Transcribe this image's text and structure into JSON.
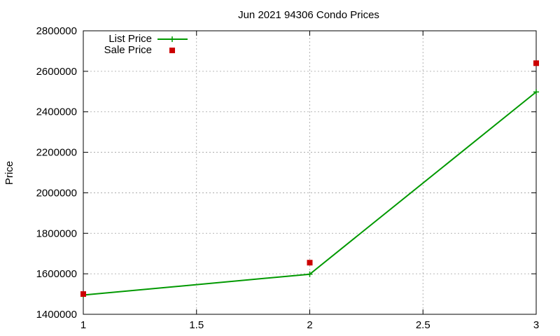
{
  "chart_data": {
    "type": "line",
    "title": "Jun 2021 94306 Condo Prices",
    "xlabel": "",
    "ylabel": "Price",
    "xlim": [
      1,
      3
    ],
    "ylim": [
      1400000,
      2800000
    ],
    "xticks": [
      1,
      1.5,
      2,
      2.5,
      3
    ],
    "yticks": [
      1400000,
      1600000,
      1800000,
      2000000,
      2200000,
      2400000,
      2600000,
      2800000
    ],
    "xtick_labels": [
      "1",
      "1.5",
      "2",
      "2.5",
      "3"
    ],
    "ytick_labels": [
      "1400000",
      "1600000",
      "1800000",
      "2000000",
      "2200000",
      "2400000",
      "2600000",
      "2800000"
    ],
    "grid": true,
    "legend_position": "top-left",
    "series": [
      {
        "name": "List Price",
        "style": "linespoints",
        "marker": "plus",
        "color": "#009900",
        "points": [
          {
            "x": 1,
            "y": 1495000
          },
          {
            "x": 2,
            "y": 1598000
          },
          {
            "x": 3,
            "y": 2498000
          }
        ]
      },
      {
        "name": "Sale Price",
        "style": "points",
        "marker": "square",
        "color": "#cc0000",
        "points": [
          {
            "x": 1,
            "y": 1500000
          },
          {
            "x": 2,
            "y": 1655000
          },
          {
            "x": 3,
            "y": 2640000
          }
        ]
      }
    ]
  }
}
